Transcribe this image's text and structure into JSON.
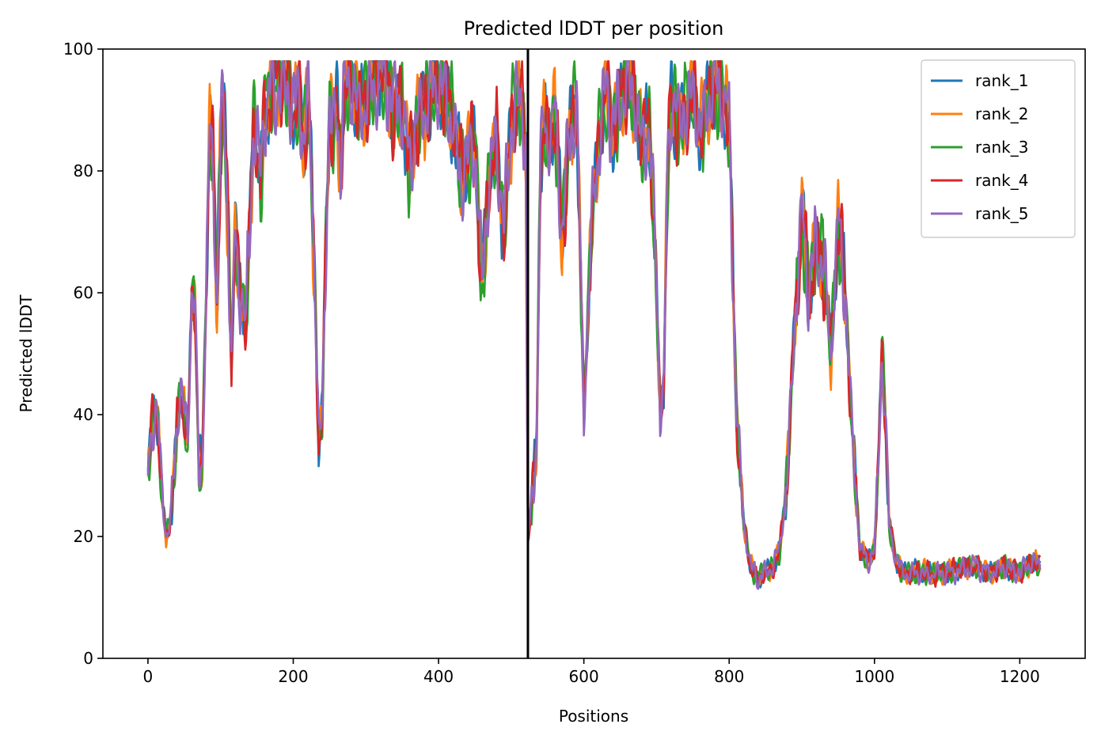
{
  "chart_data": {
    "type": "line",
    "title": "Predicted lDDT per position",
    "xlabel": "Positions",
    "ylabel": "Predicted lDDT",
    "xlim": [
      -62,
      1290
    ],
    "ylim": [
      0,
      100
    ],
    "xticks": [
      0,
      200,
      400,
      600,
      800,
      1000,
      1200
    ],
    "yticks": [
      0,
      20,
      40,
      60,
      80,
      100
    ],
    "grid": false,
    "legend_position": "top-right",
    "vertical_line": {
      "x": 523,
      "color": "#000000"
    },
    "series_order": [
      "rank_1",
      "rank_2",
      "rank_3",
      "rank_4",
      "rank_5"
    ],
    "base_profile": {
      "x": [
        0,
        5,
        10,
        15,
        20,
        25,
        30,
        35,
        40,
        45,
        50,
        55,
        60,
        65,
        70,
        75,
        80,
        85,
        90,
        95,
        100,
        105,
        110,
        115,
        120,
        125,
        130,
        135,
        140,
        145,
        150,
        155,
        160,
        170,
        180,
        190,
        200,
        210,
        215,
        220,
        225,
        230,
        235,
        240,
        245,
        250,
        255,
        260,
        265,
        270,
        280,
        290,
        300,
        310,
        320,
        330,
        340,
        350,
        360,
        370,
        380,
        390,
        400,
        410,
        420,
        430,
        440,
        450,
        460,
        470,
        480,
        490,
        500,
        510,
        515,
        520,
        523,
        525,
        530,
        535,
        540,
        545,
        550,
        560,
        570,
        580,
        585,
        590,
        600,
        610,
        620,
        630,
        640,
        650,
        660,
        670,
        680,
        690,
        700,
        705,
        710,
        715,
        720,
        730,
        740,
        750,
        760,
        770,
        780,
        790,
        800,
        810,
        820,
        830,
        840,
        850,
        860,
        870,
        880,
        890,
        900,
        910,
        920,
        930,
        940,
        950,
        960,
        970,
        980,
        990,
        1000,
        1005,
        1010,
        1015,
        1020,
        1030,
        1040,
        1050,
        1080,
        1100,
        1120,
        1140,
        1160,
        1180,
        1200,
        1210,
        1220,
        1228
      ],
      "y": [
        30,
        38,
        42,
        36,
        25,
        20,
        22,
        28,
        38,
        45,
        40,
        35,
        60,
        58,
        30,
        32,
        60,
        88,
        80,
        58,
        86,
        90,
        72,
        48,
        70,
        62,
        58,
        55,
        70,
        88,
        85,
        78,
        90,
        93,
        95,
        94,
        92,
        90,
        85,
        92,
        80,
        60,
        35,
        40,
        70,
        90,
        85,
        92,
        80,
        93,
        95,
        90,
        92,
        95,
        97,
        94,
        90,
        92,
        80,
        88,
        90,
        93,
        95,
        92,
        88,
        80,
        82,
        85,
        60,
        80,
        85,
        70,
        88,
        92,
        90,
        85,
        20,
        22,
        28,
        35,
        80,
        88,
        85,
        90,
        70,
        85,
        88,
        92,
        40,
        70,
        85,
        92,
        88,
        90,
        95,
        92,
        85,
        88,
        60,
        40,
        45,
        80,
        92,
        88,
        90,
        94,
        85,
        92,
        93,
        94,
        88,
        40,
        22,
        15,
        13,
        14,
        15,
        18,
        30,
        55,
        72,
        60,
        68,
        65,
        50,
        72,
        60,
        35,
        18,
        16,
        18,
        30,
        50,
        40,
        22,
        16,
        14,
        14,
        14,
        14,
        15,
        15,
        14,
        15,
        14,
        15,
        16,
        15
      ]
    },
    "series": [
      {
        "name": "rank_1",
        "color": "#1f77b4"
      },
      {
        "name": "rank_2",
        "color": "#ff7f0e"
      },
      {
        "name": "rank_3",
        "color": "#2ca02c"
      },
      {
        "name": "rank_4",
        "color": "#d62728"
      },
      {
        "name": "rank_5",
        "color": "#9467bd"
      }
    ]
  }
}
